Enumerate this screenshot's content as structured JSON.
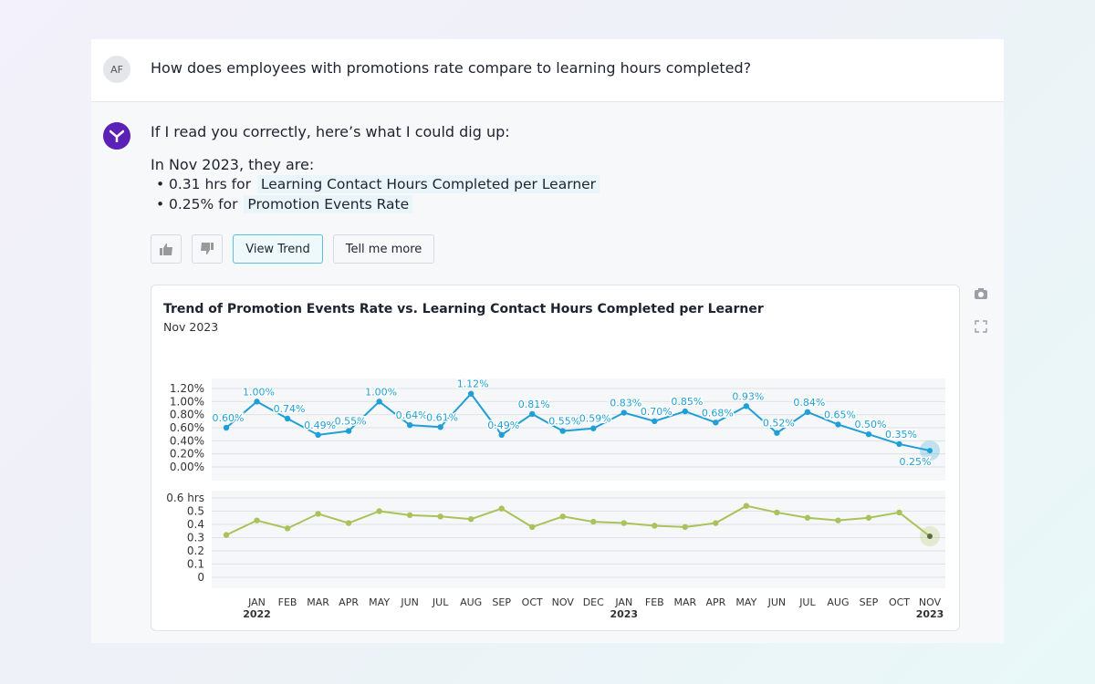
{
  "question": {
    "avatar": "AF",
    "text": "How does employees with promotions rate compare to learning hours completed?"
  },
  "answer": {
    "intro": "If I read you correctly, here’s what I could dig up:",
    "lead": "In Nov 2023, they are:",
    "bullets": [
      {
        "text": "0.31 hrs for",
        "term": "Learning Contact Hours Completed per Learner"
      },
      {
        "text": "0.25% for",
        "term": "Promotion Events Rate"
      }
    ],
    "buttons": [
      "View Trend",
      "Tell me more"
    ]
  },
  "chart_data": {
    "type": "line",
    "title": "Trend of Promotion Events Rate vs. Learning Contact Hours Completed per Learner",
    "subtitle": "Nov 2023",
    "categories": [
      null,
      "JAN",
      "FEB",
      "MAR",
      "APR",
      "MAY",
      "JUN",
      "JUL",
      "AUG",
      "SEP",
      "OCT",
      "NOV",
      "DEC",
      "JAN",
      "FEB",
      "MAR",
      "APR",
      "MAY",
      "JUN",
      "JUL",
      "AUG",
      "SEP",
      "OCT",
      "NOV"
    ],
    "year_labels": [
      null,
      "2022",
      null,
      null,
      null,
      null,
      null,
      null,
      null,
      null,
      null,
      null,
      null,
      "2023",
      null,
      null,
      null,
      null,
      null,
      null,
      null,
      null,
      null,
      "2023"
    ],
    "ylim": [
      0,
      1.2
    ],
    "yticks": [
      {
        "value": 0,
        "label": "0.00%"
      },
      {
        "value": 0.2,
        "label": "0.20%"
      },
      {
        "value": 0.4,
        "label": "0.40%"
      },
      {
        "value": 0.6,
        "label": "0.60%"
      },
      {
        "value": 0.8,
        "label": "0.80%"
      },
      {
        "value": 1.0,
        "label": "1.00%"
      },
      {
        "value": 1.2,
        "label": "1.20%"
      }
    ],
    "y2lim": [
      0,
      0.6
    ],
    "y2ticks": [
      0,
      0.1,
      0.2,
      0.3,
      0.4,
      0.5,
      {
        "value": 0.6,
        "label": "0.6 hrs"
      }
    ],
    "grid": true,
    "series": [
      {
        "color": "#1f9fd5",
        "axis": "y",
        "values": [
          0.6,
          1.0,
          0.74,
          0.49,
          0.55,
          1.0,
          0.64,
          0.61,
          1.12,
          0.49,
          0.81,
          0.55,
          0.59,
          0.83,
          0.7,
          0.85,
          0.68,
          0.93,
          0.52,
          0.84,
          0.65,
          0.5,
          0.35,
          0.25
        ],
        "value_labels": [
          "0.60%",
          "1.00%",
          "0.74%",
          "0.49%",
          "0.55%",
          "1.00%",
          "0.64%",
          "0.61%",
          "1.12%",
          "0.49%",
          "0.81%",
          "0.55%",
          "0.59%",
          "0.83%",
          "0.70%",
          "0.85%",
          "0.68%",
          "0.93%",
          "0.52%",
          "0.84%",
          "0.65%",
          "0.50%",
          "0.35%",
          "0.25%"
        ]
      },
      {
        "color": "#a9c35a",
        "axis": "y2",
        "values": [
          0.32,
          0.43,
          0.37,
          0.48,
          0.41,
          0.5,
          0.47,
          0.46,
          0.44,
          0.52,
          0.38,
          0.46,
          0.42,
          0.41,
          0.39,
          0.38,
          0.41,
          0.54,
          0.49,
          0.45,
          0.43,
          0.45,
          0.49,
          0.31
        ]
      }
    ]
  }
}
